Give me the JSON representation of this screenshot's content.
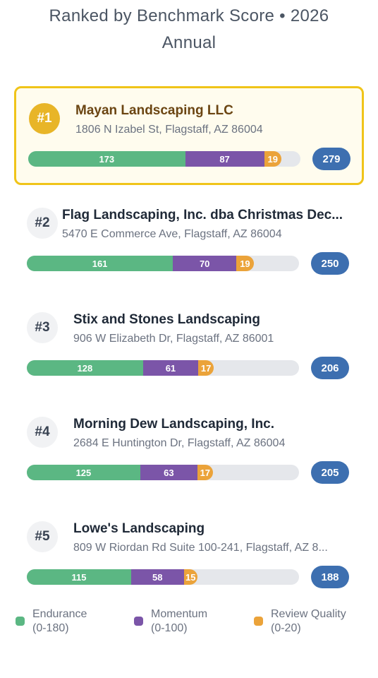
{
  "header": {
    "title": "Ranked by Benchmark Score • 2026 Annual"
  },
  "segments": [
    {
      "name": "Endurance",
      "range": {
        "value": 180,
        "label": "(0-180)"
      },
      "color": "#5bb783"
    },
    {
      "name": "Momentum",
      "range": {
        "value": 100,
        "label": "(0-100)"
      },
      "color": "#7b55a8"
    },
    {
      "name": "Review Quality",
      "range": {
        "value": 20,
        "label": "(0-20)"
      },
      "color": "#eba33a"
    }
  ],
  "items": [
    {
      "rank": "#1",
      "name": "Mayan Landscaping LLC",
      "address": "1806 N Izabel St, Flagstaff, AZ 86004",
      "values": [
        173,
        87,
        19
      ],
      "total": 279
    },
    {
      "rank": "#2",
      "name": "Flag Landscaping, Inc. dba Christmas Dec...",
      "address": "5470 E Commerce Ave, Flagstaff, AZ 86004",
      "values": [
        161,
        70,
        19
      ],
      "total": 250
    },
    {
      "rank": "#3",
      "name": "Stix and Stones Landscaping",
      "address": "906 W Elizabeth Dr, Flagstaff, AZ 86001",
      "values": [
        128,
        61,
        17
      ],
      "total": 206
    },
    {
      "rank": "#4",
      "name": "Morning Dew Landscaping, Inc.",
      "address": "2684 E Huntington Dr, Flagstaff, AZ 86004",
      "values": [
        125,
        63,
        17
      ],
      "total": 205
    },
    {
      "rank": "#5",
      "name": "Lowe's Landscaping",
      "address": "809 W Riordan Rd Suite 100-241, Flagstaff, AZ 8...",
      "values": [
        115,
        58,
        15
      ],
      "total": 188
    }
  ]
}
